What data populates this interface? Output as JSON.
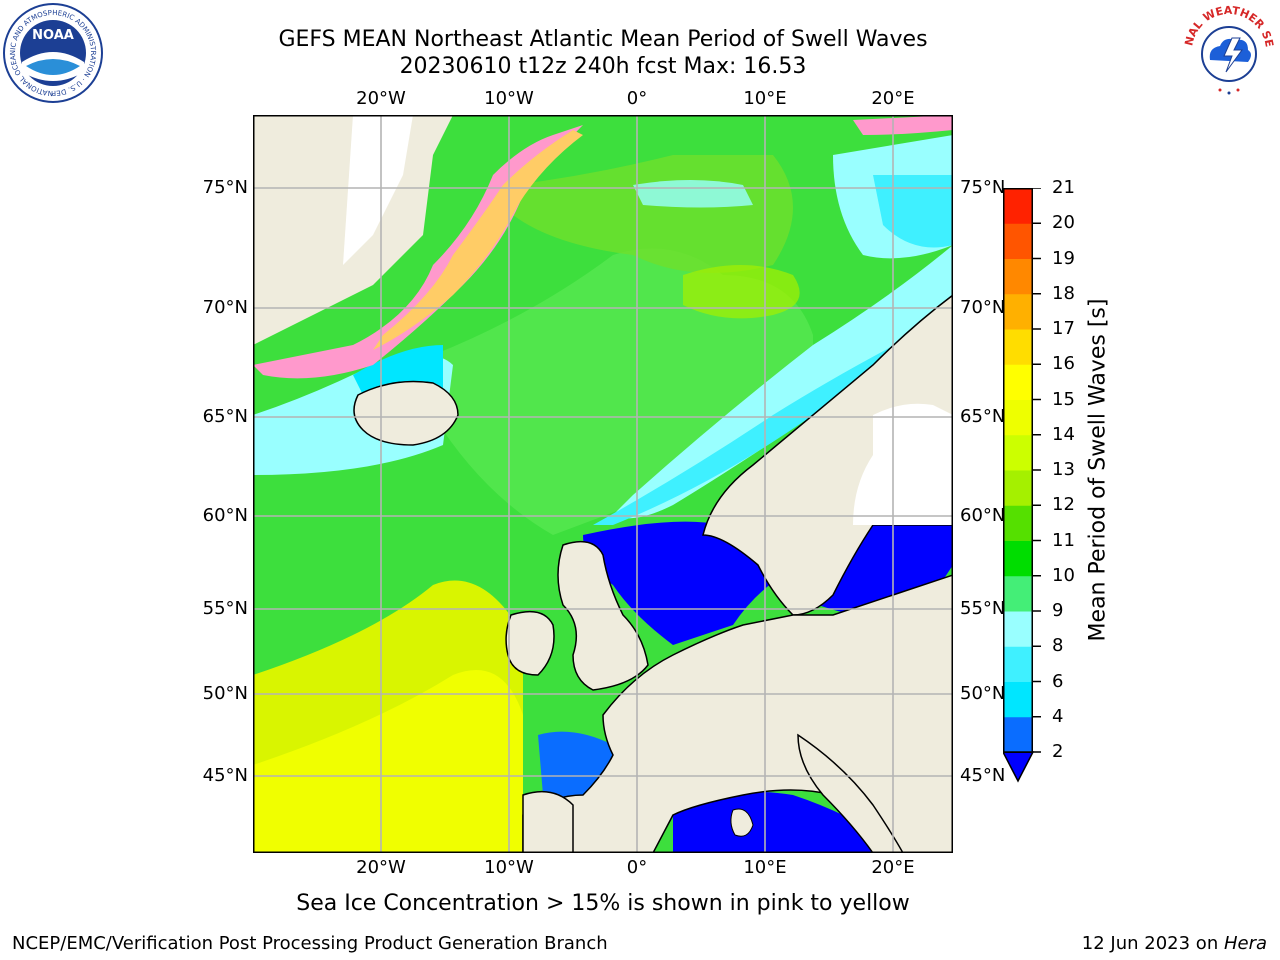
{
  "title": {
    "line1": "GEFS MEAN Northeast Atlantic Mean Period of Swell Waves",
    "line2": "20230610 t12z 240h fcst   Max: 16.53"
  },
  "map": {
    "lon_labels": [
      "20°W",
      "10°W",
      "0°",
      "10°E",
      "20°E"
    ],
    "lat_labels": [
      "75°N",
      "70°N",
      "65°N",
      "60°N",
      "55°N",
      "50°N",
      "45°N"
    ],
    "colors": {
      "land": "#efecdd",
      "grid": "#b4b4b4",
      "coast": "#000000"
    }
  },
  "colorbar": {
    "label": "Mean Period of Swell Waves [s]",
    "ticks": [
      "2",
      "4",
      "6",
      "8",
      "9",
      "10",
      "11",
      "12",
      "13",
      "14",
      "15",
      "16",
      "17",
      "18",
      "19",
      "20",
      "21"
    ],
    "colors": [
      "#0a6dff",
      "#00e6ff",
      "#3ff0ff",
      "#99ffff",
      "#44ee77",
      "#00dd00",
      "#55e000",
      "#a5f000",
      "#ccff00",
      "#eeff00",
      "#ffff00",
      "#ffdd00",
      "#ffb000",
      "#ff8800",
      "#ff5500",
      "#ff2200"
    ],
    "under_color": "#0000ff"
  },
  "footnote": "Sea Ice Concentration > 15% is shown in pink to yellow",
  "credit": "NCEP/EMC/Verification Post Processing Product Generation Branch",
  "date": {
    "text": "12 Jun 2023 on ",
    "host": "Hera"
  },
  "logos": {
    "noaa": {
      "name": "NOAA",
      "ring": "NATIONAL OCEANIC AND ATMOSPHERIC ADMINISTRATION · U.S. DEPARTMENT OF COMMERCE"
    },
    "nws": {
      "ring": "NATIONAL WEATHER SERVICE"
    }
  }
}
